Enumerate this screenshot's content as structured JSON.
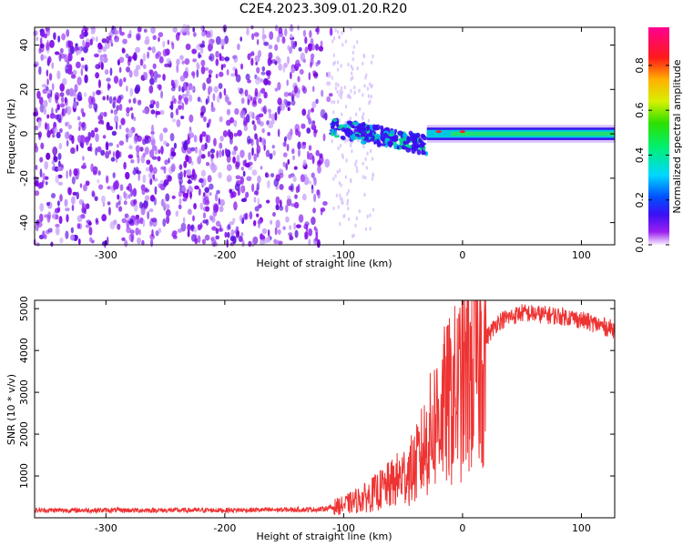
{
  "title": "C2E4.2023.309.01.20.R20",
  "chart_data": [
    {
      "type": "heatmap",
      "xlabel": "Height of straight line (km)",
      "ylabel": "Frequency (Hz)",
      "xlim": [
        -360,
        128
      ],
      "ylim": [
        -50,
        48
      ],
      "xticks": [
        -300,
        -200,
        -100,
        0,
        100
      ],
      "yticks": [
        -40,
        -20,
        0,
        20,
        40
      ],
      "colorbar": {
        "label": "Normalized spectral amplitude",
        "range": [
          0,
          0.97
        ],
        "ticks": [
          0.0,
          0.2,
          0.4,
          0.6,
          0.8
        ]
      },
      "regions": [
        {
          "x_range": [
            -360,
            -110
          ],
          "freq_range": [
            -50,
            48
          ],
          "amplitude": "low, scattered noise (~0.1)"
        },
        {
          "x_range": [
            -110,
            -30
          ],
          "freq_center": [
            2,
            -8
          ],
          "amplitude": "0.2-0.5, spreading signal"
        },
        {
          "x_range": [
            -30,
            128
          ],
          "freq_center": 0,
          "freq_halfwidth": 3,
          "amplitude": "0.4-0.9, narrow band at 0 Hz"
        }
      ],
      "annotated_peaks": [
        {
          "x": -20,
          "y": 1,
          "value": 0.9
        },
        {
          "x": 0,
          "y": 1,
          "value": 0.9
        }
      ]
    },
    {
      "type": "line",
      "xlabel": "Height of straight line (km)",
      "ylabel": "SNR (10 * v/v)",
      "xlim": [
        -360,
        128
      ],
      "ylim": [
        0,
        5200
      ],
      "xticks": [
        -300,
        -200,
        -100,
        0,
        100
      ],
      "yticks": [
        1000,
        2000,
        3000,
        4000,
        5000
      ],
      "series": [
        {
          "color": "#ee3333",
          "envelope_x": [
            -360,
            -300,
            -200,
            -120,
            -100,
            -80,
            -60,
            -40,
            -30,
            -20,
            -10,
            0,
            10,
            20,
            30,
            50,
            70,
            90,
            110,
            128
          ],
          "envelope_y": [
            180,
            180,
            180,
            200,
            300,
            500,
            800,
            1200,
            1800,
            2500,
            2800,
            3200,
            3700,
            4300,
            4700,
            4900,
            4850,
            4800,
            4650,
            4500
          ]
        }
      ]
    }
  ],
  "colors": {
    "line": "#ee3333",
    "heatmap_noise": "#7b00e0",
    "heatmap_band": "#00c8b0"
  }
}
